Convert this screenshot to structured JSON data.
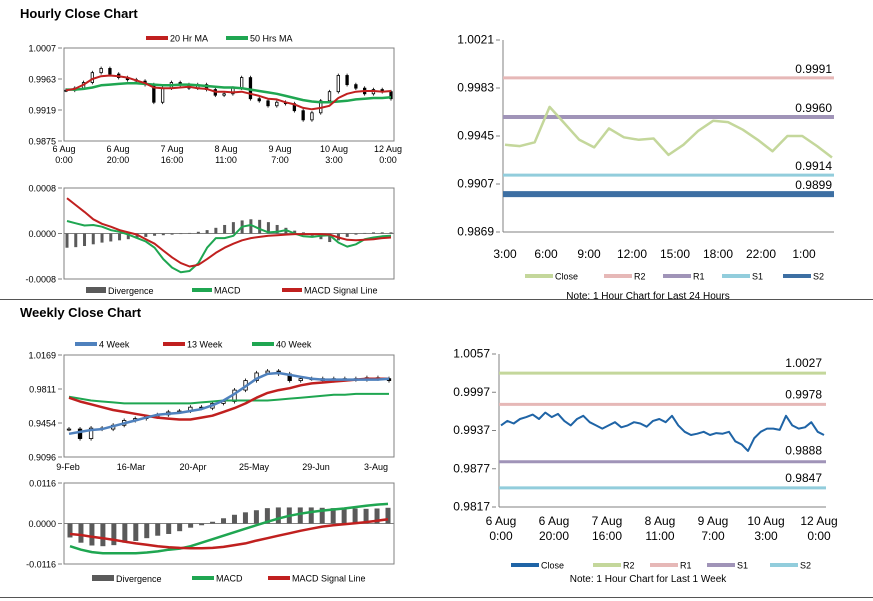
{
  "sections": {
    "hourly_title": "Hourly Close Chart",
    "weekly_title": "Weekly Close Chart"
  },
  "colors": {
    "red": "#c0201f",
    "green": "#1fa651",
    "blue": "#4f81bd",
    "dark_blue": "#1f64a6",
    "pale_green": "#c4d79b",
    "pink": "#e6b8b7",
    "purple": "#a094b8",
    "light_blue": "#92cddc",
    "steel_blue": "#3d6fa3",
    "gray_bar": "#5a5a5a"
  },
  "chart_data": [
    {
      "id": "hourly_price",
      "type": "candlestick",
      "title": "Hourly Close Chart",
      "ylim": [
        0.9875,
        1.0007
      ],
      "y_ticks": [
        "1.0007",
        "0.9963",
        "0.9919",
        "0.9875"
      ],
      "x_ticks": [
        [
          "6 Aug",
          "0:00"
        ],
        [
          "6 Aug",
          "20:00"
        ],
        [
          "7 Aug",
          "16:00"
        ],
        [
          "8 Aug",
          "11:00"
        ],
        [
          "9 Aug",
          "7:00"
        ],
        [
          "10 Aug",
          "3:00"
        ],
        [
          "12 Aug",
          "0:00"
        ]
      ],
      "legend": [
        "20 Hr MA",
        "50 Hrs MA"
      ],
      "close": [
        0.9947,
        0.995,
        0.9958,
        0.9972,
        0.9978,
        0.997,
        0.9965,
        0.9962,
        0.996,
        0.9955,
        0.993,
        0.995,
        0.9958,
        0.9955,
        0.995,
        0.9955,
        0.9948,
        0.994,
        0.9942,
        0.995,
        0.9965,
        0.9935,
        0.9932,
        0.9925,
        0.993,
        0.9928,
        0.9918,
        0.9905,
        0.9915,
        0.9932,
        0.9945,
        0.9968,
        0.9955,
        0.995,
        0.9942,
        0.9948,
        0.9945,
        0.9935
      ],
      "series": [
        {
          "name": "20 Hr MA",
          "values": [
            0.9947,
            0.9949,
            0.9955,
            0.9963,
            0.9967,
            0.9968,
            0.9967,
            0.9965,
            0.9961,
            0.9957,
            0.9951,
            0.995,
            0.995,
            0.9951,
            0.9952,
            0.995,
            0.9949,
            0.9945,
            0.9945,
            0.9944,
            0.9945,
            0.9942,
            0.9939,
            0.9935,
            0.9934,
            0.993,
            0.9927,
            0.9922,
            0.992,
            0.9922,
            0.9925,
            0.9936,
            0.9942,
            0.9945,
            0.9946,
            0.9946,
            0.9945,
            0.9946
          ]
        },
        {
          "name": "50 Hrs MA",
          "values": [
            0.9948,
            0.9948,
            0.9949,
            0.9951,
            0.9954,
            0.9955,
            0.9956,
            0.9957,
            0.9957,
            0.9956,
            0.9955,
            0.9954,
            0.9954,
            0.9955,
            0.9955,
            0.9954,
            0.9953,
            0.9952,
            0.9951,
            0.9951,
            0.995,
            0.9948,
            0.9946,
            0.9944,
            0.9942,
            0.9939,
            0.9936,
            0.9933,
            0.9931,
            0.993,
            0.993,
            0.9931,
            0.9932,
            0.9934,
            0.9935,
            0.9936,
            0.9936,
            0.9937
          ]
        }
      ]
    },
    {
      "id": "hourly_macd",
      "type": "bar+line",
      "ylim": [
        -0.0008,
        0.0008
      ],
      "y_ticks": [
        "0.0008",
        "0.0000",
        "-0.0008"
      ],
      "legend": [
        "Divergence",
        "MACD",
        "MACD Signal Line"
      ],
      "divergence": [
        -0.00025,
        -0.00024,
        -0.00022,
        -0.00019,
        -0.00016,
        -0.00014,
        -0.00012,
        -0.0001,
        -8e-05,
        -6e-05,
        -4e-05,
        -3e-05,
        -2e-05,
        -1e-05,
        1e-05,
        3e-05,
        6e-05,
        0.0001,
        0.00015,
        0.0002,
        0.00023,
        0.00025,
        0.00024,
        0.0002,
        0.00015,
        0.0001,
        5e-05,
        2e-05,
        -4e-05,
        -0.0001,
        -0.00015,
        -0.00012,
        -6e-05,
        -2e-05,
        1e-05,
        2e-05,
        2e-05,
        2e-05
      ],
      "series": [
        {
          "name": "MACD",
          "values": [
            0.00022,
            0.00018,
            0.00014,
            0.00015,
            0.00012,
            6e-05,
            3e-05,
            -2e-05,
            -8e-05,
            -0.00014,
            -0.00025,
            -0.00045,
            -0.0006,
            -0.00068,
            -0.00066,
            -0.00052,
            -0.00025,
            -8e-05,
            -8e-05,
            -4e-05,
            0.00012,
            0.00015,
            8e-05,
            2e-05,
            3e-05,
            6e-05,
            0.0,
            -5e-05,
            -6e-05,
            -4e-05,
            -3e-05,
            -0.00016,
            -0.00023,
            -0.00019,
            -0.0001,
            -7e-05,
            -5e-05,
            -4e-05
          ]
        },
        {
          "name": "MACD Signal Line",
          "values": [
            0.00062,
            0.0005,
            0.00038,
            0.00025,
            0.00017,
            0.00012,
            6e-05,
            2e-05,
            -2e-05,
            -0.0001,
            -0.00018,
            -0.0003,
            -0.00042,
            -0.00052,
            -0.00058,
            -0.00055,
            -0.00045,
            -0.00034,
            -0.00025,
            -0.00018,
            -0.00012,
            -8e-05,
            -6e-05,
            -4e-05,
            -3e-05,
            -2e-05,
            -1e-05,
            -1e-05,
            -1e-05,
            -1e-05,
            -2e-05,
            -7e-05,
            -0.00011,
            -0.00012,
            -0.00011,
            -0.0001,
            -8e-05,
            -7e-05
          ]
        }
      ]
    },
    {
      "id": "hourly_pivot",
      "type": "line",
      "note": "Note: 1 Hour Chart for Last 24 Hours",
      "ylim": [
        0.9869,
        1.0021
      ],
      "y_ticks": [
        "1.0021",
        "0.9983",
        "0.9945",
        "0.9907",
        "0.9869"
      ],
      "x_ticks": [
        "3:00",
        "6:00",
        "9:00",
        "12:00",
        "15:00",
        "18:00",
        "22:00",
        "1:00"
      ],
      "levels": [
        {
          "name": "R2",
          "value": 0.9991,
          "label": "0.9991"
        },
        {
          "name": "R1",
          "value": 0.996,
          "label": "0.9960"
        },
        {
          "name": "S1",
          "value": 0.9914,
          "label": "0.9914"
        },
        {
          "name": "S2",
          "value": 0.9899,
          "label": "0.9899"
        }
      ],
      "legend": [
        "Close",
        "R2",
        "R1",
        "S1",
        "S2"
      ],
      "series": [
        {
          "name": "Close",
          "values": [
            0.9938,
            0.9937,
            0.994,
            0.9968,
            0.9955,
            0.9942,
            0.9936,
            0.9951,
            0.9944,
            0.9942,
            0.9943,
            0.993,
            0.9938,
            0.9949,
            0.9957,
            0.9956,
            0.995,
            0.9942,
            0.9933,
            0.9945,
            0.9945,
            0.9937,
            0.9928
          ]
        }
      ]
    },
    {
      "id": "weekly_price",
      "type": "candlestick",
      "title": "Weekly Close Chart",
      "ylim": [
        0.9096,
        1.0169
      ],
      "y_ticks": [
        "1.0169",
        "0.9811",
        "0.9454",
        "0.9096"
      ],
      "x_ticks": [
        "9-Feb",
        "16-Mar",
        "20-Apr",
        "25-May",
        "29-Jun",
        "3-Aug"
      ],
      "legend": [
        "4 Week",
        "13 Week",
        "40 Week"
      ],
      "close": [
        0.939,
        0.929,
        0.94,
        0.939,
        0.943,
        0.948,
        0.95,
        0.952,
        0.954,
        0.957,
        0.958,
        0.962,
        0.961,
        0.966,
        0.968,
        0.98,
        0.99,
        0.998,
        1.0,
        0.997,
        0.99,
        0.992,
        0.992,
        0.99,
        0.992,
        0.992,
        0.991,
        0.993,
        0.992,
        0.99
      ],
      "series": [
        {
          "name": "4 Week",
          "values": [
            0.934,
            0.936,
            0.938,
            0.939,
            0.942,
            0.945,
            0.948,
            0.951,
            0.954,
            0.955,
            0.956,
            0.958,
            0.96,
            0.964,
            0.969,
            0.976,
            0.984,
            0.992,
            0.997,
            0.998,
            0.996,
            0.994,
            0.992,
            0.991,
            0.991,
            0.991,
            0.991,
            0.991,
            0.991,
            0.992
          ]
        },
        {
          "name": "13 Week",
          "values": [
            0.972,
            0.968,
            0.965,
            0.962,
            0.959,
            0.957,
            0.955,
            0.953,
            0.951,
            0.95,
            0.949,
            0.949,
            0.951,
            0.953,
            0.957,
            0.961,
            0.966,
            0.972,
            0.977,
            0.98,
            0.982,
            0.985,
            0.987,
            0.988,
            0.989,
            0.99,
            0.991,
            0.992,
            0.992,
            0.992
          ]
        },
        {
          "name": "40 Week",
          "values": [
            0.973,
            0.971,
            0.969,
            0.968,
            0.967,
            0.966,
            0.966,
            0.966,
            0.966,
            0.966,
            0.966,
            0.966,
            0.967,
            0.968,
            0.969,
            0.969,
            0.969,
            0.969,
            0.969,
            0.97,
            0.971,
            0.972,
            0.973,
            0.974,
            0.975,
            0.975,
            0.976,
            0.976,
            0.976,
            0.976
          ]
        }
      ]
    },
    {
      "id": "weekly_macd",
      "type": "bar+line",
      "ylim": [
        -0.0116,
        0.0116
      ],
      "y_ticks": [
        "0.0116",
        "0.0000",
        "-0.0116"
      ],
      "legend": [
        "Divergence",
        "MACD",
        "MACD Signal Line"
      ],
      "divergence": [
        -0.004,
        -0.0055,
        -0.0063,
        -0.0065,
        -0.0062,
        -0.0055,
        -0.005,
        -0.0042,
        -0.0035,
        -0.003,
        -0.0022,
        -0.0012,
        -0.0005,
        0.0005,
        0.0015,
        0.0025,
        0.0032,
        0.0038,
        0.0044,
        0.0046,
        0.0046,
        0.0046,
        0.0046,
        0.0045,
        0.0044,
        0.0043,
        0.0043,
        0.0042,
        0.0043,
        0.0045
      ],
      "series": [
        {
          "name": "MACD",
          "values": [
            -0.0065,
            -0.0075,
            -0.0082,
            -0.0085,
            -0.0085,
            -0.0085,
            -0.0085,
            -0.0083,
            -0.008,
            -0.0075,
            -0.0072,
            -0.0065,
            -0.0055,
            -0.0045,
            -0.0035,
            -0.0025,
            -0.0015,
            -0.0005,
            0.0005,
            0.0014,
            0.0022,
            0.0028,
            0.0033,
            0.0037,
            0.004,
            0.0043,
            0.0047,
            0.0051,
            0.0054,
            0.0056
          ]
        },
        {
          "name": "MACD Signal Line",
          "values": [
            -0.003,
            -0.0033,
            -0.0038,
            -0.0042,
            -0.0047,
            -0.0052,
            -0.0057,
            -0.0061,
            -0.0065,
            -0.0068,
            -0.007,
            -0.0071,
            -0.0071,
            -0.007,
            -0.0067,
            -0.0062,
            -0.0057,
            -0.0049,
            -0.0042,
            -0.0035,
            -0.0028,
            -0.0021,
            -0.0015,
            -0.0009,
            -0.0005,
            -0.0002,
            0.0001,
            0.0004,
            0.0008,
            0.0012
          ]
        }
      ]
    },
    {
      "id": "weekly_pivot",
      "type": "line",
      "note": "Note: 1 Hour Chart for Last 1 Week",
      "ylim": [
        0.9817,
        1.0057
      ],
      "y_ticks": [
        "1.0057",
        "0.9997",
        "0.9937",
        "0.9877",
        "0.9817"
      ],
      "x_ticks": [
        [
          "6 Aug",
          "0:00"
        ],
        [
          "6 Aug",
          "20:00"
        ],
        [
          "7 Aug",
          "16:00"
        ],
        [
          "8 Aug",
          "11:00"
        ],
        [
          "9 Aug",
          "7:00"
        ],
        [
          "10 Aug",
          "3:00"
        ],
        [
          "12 Aug",
          "0:00"
        ]
      ],
      "levels": [
        {
          "name": "R2",
          "value": 1.0027,
          "label": "1.0027"
        },
        {
          "name": "R1",
          "value": 0.9978,
          "label": "0.9978"
        },
        {
          "name": "S1",
          "value": 0.9888,
          "label": "0.9888"
        },
        {
          "name": "S2",
          "value": 0.9847,
          "label": "0.9847"
        }
      ],
      "legend": [
        "Close",
        "R2",
        "R1",
        "S1",
        "S2"
      ],
      "series": [
        {
          "name": "Close",
          "values": [
            0.9945,
            0.9952,
            0.9948,
            0.9955,
            0.9958,
            0.9962,
            0.9955,
            0.9965,
            0.9958,
            0.9963,
            0.9952,
            0.9945,
            0.9955,
            0.996,
            0.995,
            0.9945,
            0.994,
            0.9945,
            0.995,
            0.9942,
            0.9945,
            0.995,
            0.9948,
            0.9943,
            0.9952,
            0.9955,
            0.995,
            0.996,
            0.9945,
            0.9935,
            0.993,
            0.9932,
            0.9935,
            0.993,
            0.9933,
            0.9932,
            0.9935,
            0.992,
            0.9915,
            0.9905,
            0.9925,
            0.9935,
            0.994,
            0.994,
            0.9938,
            0.996,
            0.9945,
            0.994,
            0.9942,
            0.995,
            0.9935,
            0.993
          ]
        }
      ]
    }
  ]
}
